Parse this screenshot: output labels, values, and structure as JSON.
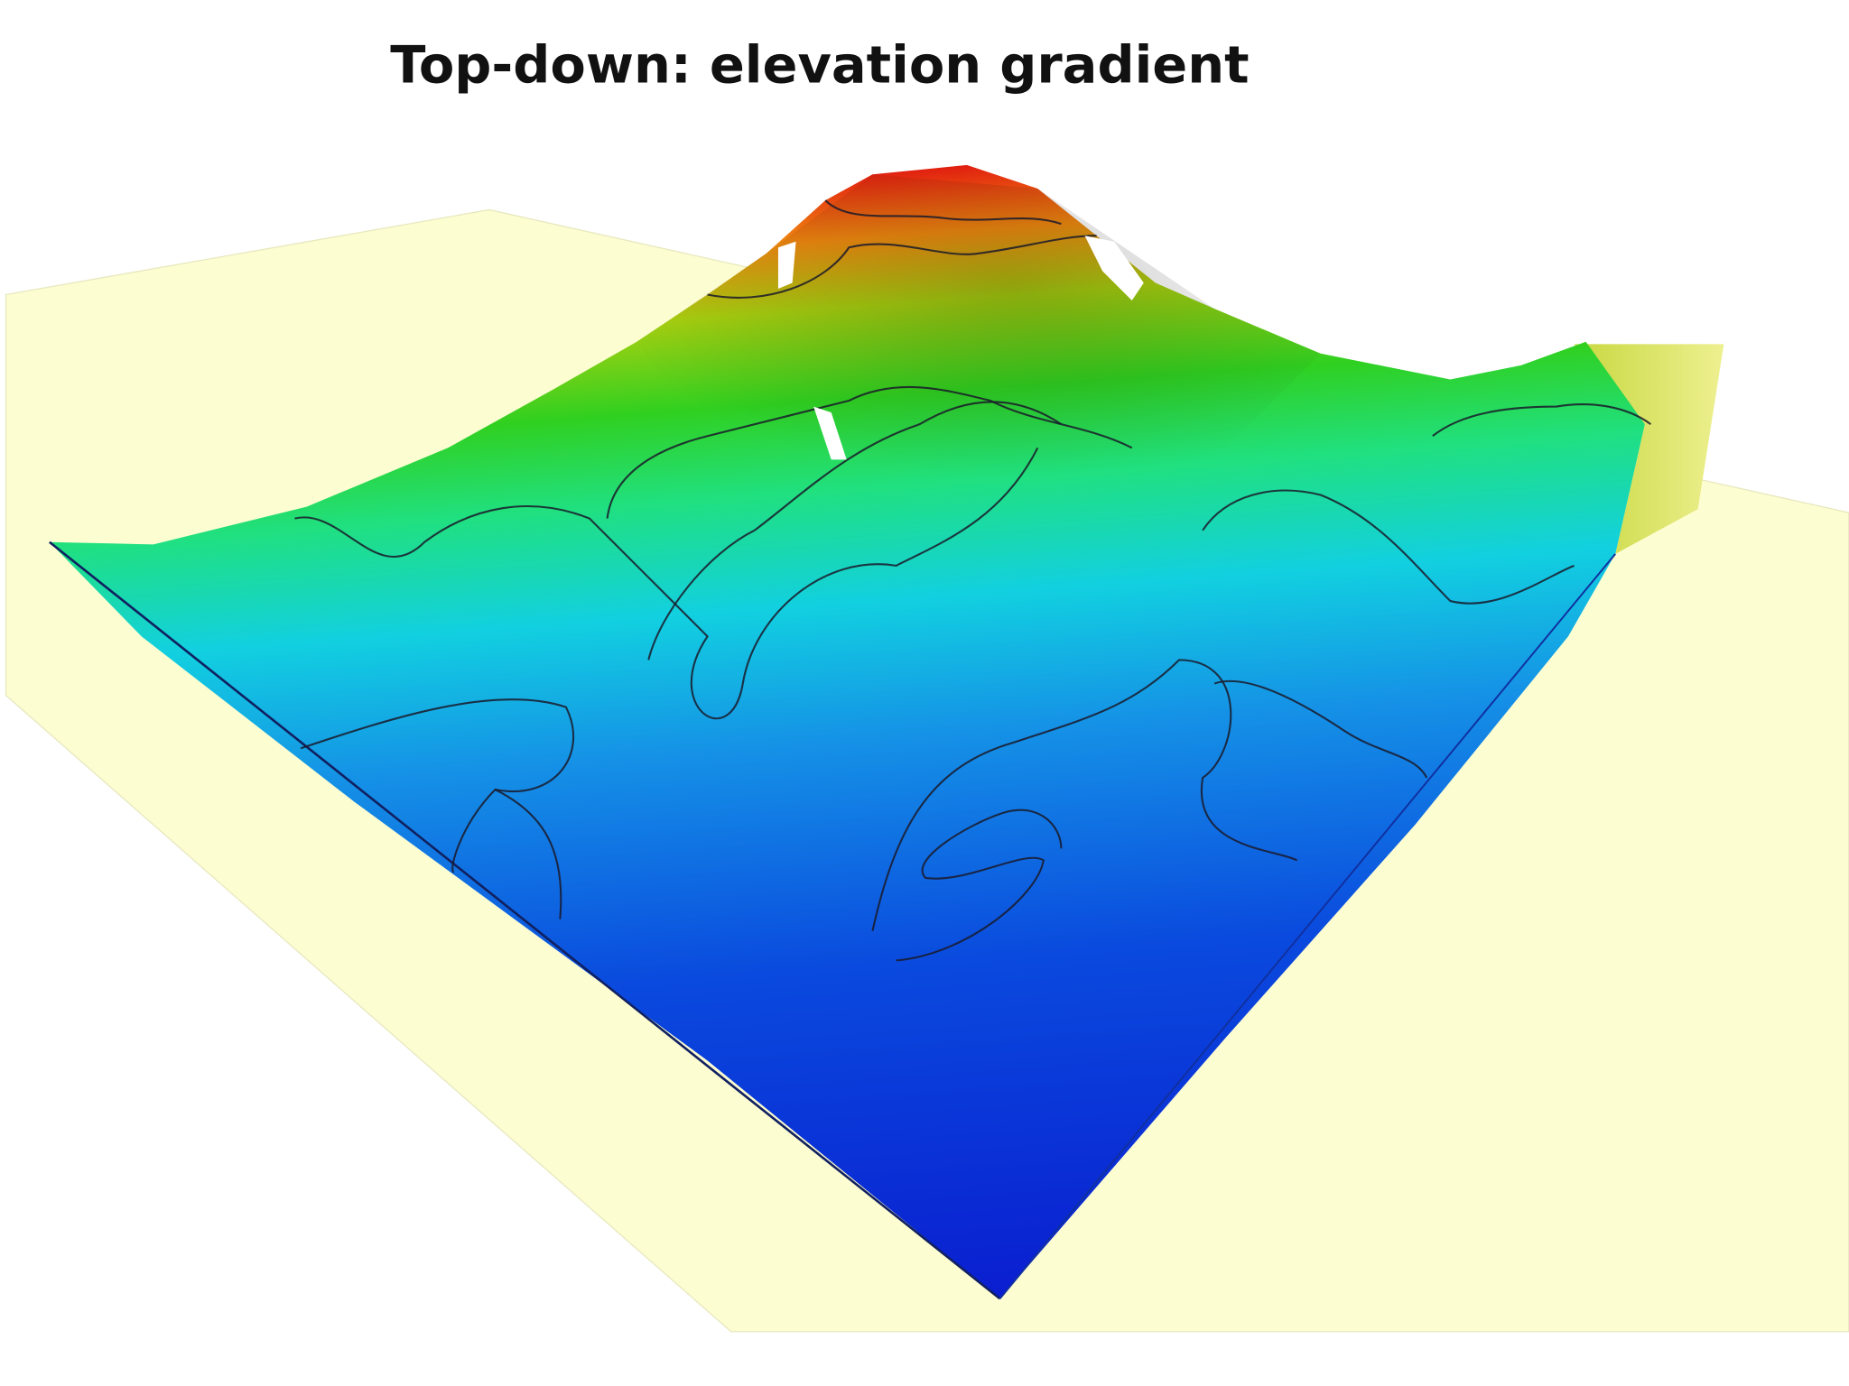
{
  "title": "Top-down: elevation gradient"
}
